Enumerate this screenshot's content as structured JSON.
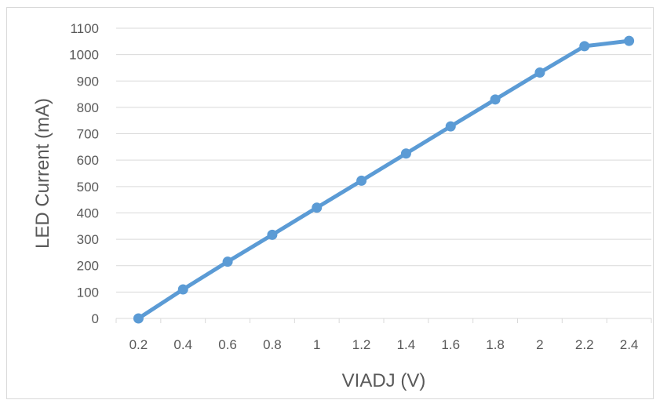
{
  "chart_data": {
    "type": "line",
    "title": "",
    "xlabel": "VIADJ (V)",
    "ylabel": "LED Current (mA)",
    "categories": [
      "0.2",
      "0.4",
      "0.6",
      "0.8",
      "1",
      "1.2",
      "1.4",
      "1.6",
      "1.8",
      "2",
      "2.2",
      "2.4"
    ],
    "series": [
      {
        "values": [
          0,
          110,
          215,
          317,
          420,
          522,
          625,
          728,
          830,
          932,
          1032,
          1052
        ]
      }
    ],
    "ylim": [
      0,
      1100
    ],
    "yticks": [
      0,
      100,
      200,
      300,
      400,
      500,
      600,
      700,
      800,
      900,
      1000,
      1100
    ],
    "grid": true,
    "legend": "none",
    "colors": {
      "series": "#5b9bd5",
      "grid": "#d9d9d9",
      "text": "#595959"
    }
  }
}
